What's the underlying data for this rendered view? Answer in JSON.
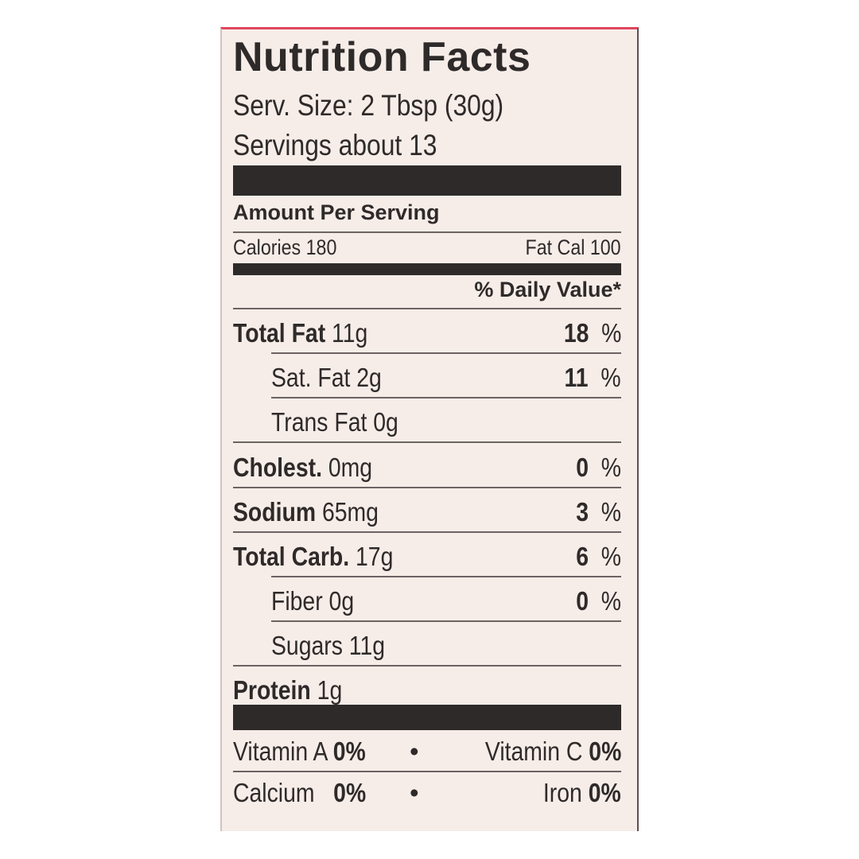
{
  "colors": {
    "panel": "#f6ede8",
    "ink": "#2f2a2a",
    "top_edge": "#e0455e"
  },
  "title": "Nutrition Facts",
  "serving_size": "Serv. Size: 2 Tbsp (30g)",
  "servings": "Servings about 13",
  "amount_per_serving": "Amount Per Serving",
  "calories": {
    "label": "Calories",
    "value": "180",
    "fat_cal_label": "Fat Cal",
    "fat_cal_value": "100"
  },
  "daily_value_header": "% Daily Value*",
  "nutrients": [
    {
      "label": "Total Fat",
      "amount": "11g",
      "dv": "18",
      "unit": "%"
    },
    {
      "label": "Sat. Fat",
      "amount": "2g",
      "dv": "11",
      "unit": "%"
    },
    {
      "label": "Trans Fat",
      "amount": "0g"
    },
    {
      "label": "Cholest.",
      "amount": "0mg",
      "dv": "0",
      "unit": "%"
    },
    {
      "label": "Sodium",
      "amount": "65mg",
      "dv": "3",
      "unit": "%"
    },
    {
      "label": "Total Carb.",
      "amount": "17g",
      "dv": "6",
      "unit": "%"
    },
    {
      "label": "Fiber",
      "amount": "0g",
      "dv": "0",
      "unit": "%"
    },
    {
      "label": "Sugars",
      "amount": "11g"
    },
    {
      "label": "Protein",
      "amount": "1g"
    }
  ],
  "vitamins": [
    {
      "label": "Vitamin A",
      "value": "0%",
      "label2": "Vitamin C",
      "value2": "0%"
    },
    {
      "label": "Calcium",
      "value": "0%",
      "label2": "Iron",
      "value2": "0%"
    }
  ],
  "bullet": "•"
}
